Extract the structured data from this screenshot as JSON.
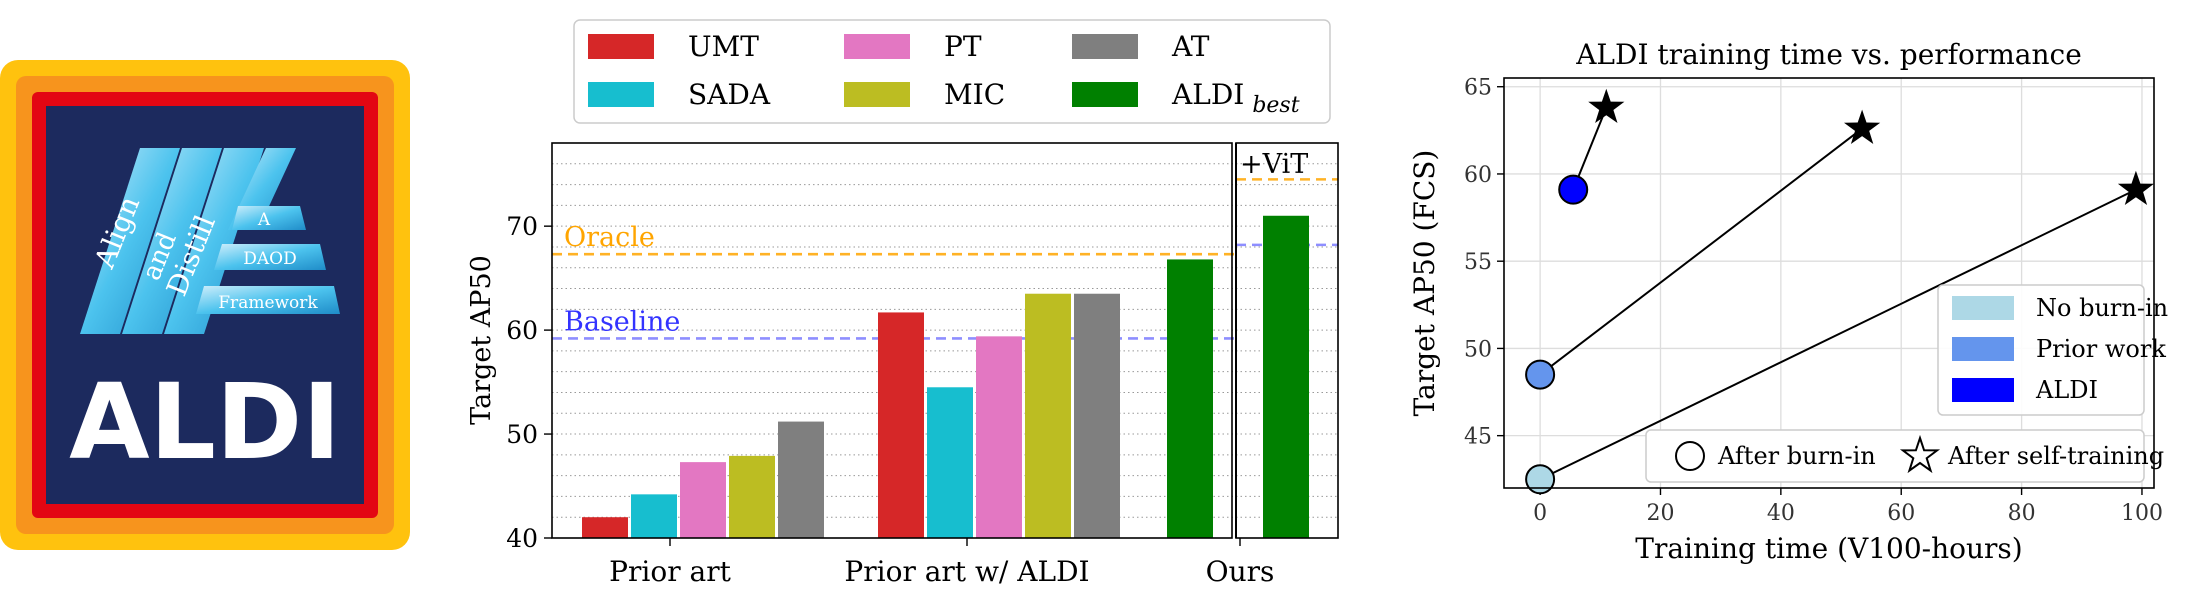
{
  "logo": {
    "word1": "Align",
    "word2": "and",
    "word3": "Distill",
    "tag1": "A",
    "tag2": "DAOD",
    "tag3": "Framework",
    "wordmark": "ALDI"
  },
  "chart_data": [
    {
      "type": "bar",
      "ylabel": "Target AP50",
      "ylim": [
        40,
        78
      ],
      "yticks": [
        40,
        50,
        60,
        70
      ],
      "grid": "minor horizontal dotted",
      "legend_position": "top",
      "groups": [
        "Prior art",
        "Prior art w/ ALDI",
        "Ours"
      ],
      "series": [
        {
          "name": "UMT",
          "color": "#d62728",
          "values": [
            42.0,
            61.7,
            null
          ]
        },
        {
          "name": "SADA",
          "color": "#17becf",
          "values": [
            44.2,
            54.5,
            null
          ]
        },
        {
          "name": "PT",
          "color": "#e377c2",
          "values": [
            47.3,
            59.4,
            null
          ]
        },
        {
          "name": "MIC",
          "color": "#bcbd22",
          "values": [
            47.9,
            63.5,
            null
          ]
        },
        {
          "name": "AT",
          "color": "#7f7f7f",
          "values": [
            51.2,
            63.5,
            null
          ]
        },
        {
          "name": "ALDI",
          "name_subscript": "best",
          "color": "#008000",
          "values": [
            null,
            null,
            66.8
          ]
        }
      ],
      "vit_section": {
        "label": "+ViT",
        "value": 71.0,
        "color": "#008000"
      },
      "reference_lines": [
        {
          "label": "Oracle",
          "value": 67.3,
          "color": "#ffa500"
        },
        {
          "label": "Baseline",
          "value": 59.2,
          "color": "#3333ff"
        }
      ],
      "vit_reference_lines": [
        {
          "value": 74.5,
          "color": "#ffa500"
        },
        {
          "value": 68.2,
          "color": "#3333ff"
        }
      ]
    },
    {
      "type": "scatter",
      "title": "ALDI training time vs. performance",
      "xlabel": "Training time (V100-hours)",
      "ylabel": "Target AP50 (FCS)",
      "xlim": [
        -6,
        102
      ],
      "ylim": [
        42,
        65.5
      ],
      "xticks": [
        0,
        20,
        40,
        60,
        80,
        100
      ],
      "yticks": [
        45,
        50,
        55,
        60,
        65
      ],
      "grid": true,
      "series": [
        {
          "name": "No burn-in",
          "color": "#add8e6",
          "burnin": {
            "x": 0,
            "y": 42.5
          },
          "selftrain": {
            "x": 99,
            "y": 59.1
          }
        },
        {
          "name": "Prior work",
          "color": "#6495ed",
          "burnin": {
            "x": 0,
            "y": 48.5
          },
          "selftrain": {
            "x": 53.5,
            "y": 62.6
          }
        },
        {
          "name": "ALDI",
          "color": "#0000ff",
          "burnin": {
            "x": 5.5,
            "y": 59.1
          },
          "selftrain": {
            "x": 11,
            "y": 63.8
          }
        }
      ],
      "legend_color": {
        "position": "lower right",
        "entries": [
          "No burn-in",
          "Prior work",
          "ALDI"
        ]
      },
      "legend_marker": {
        "position": "bottom",
        "entries": [
          "After burn-in",
          "After self-training"
        ]
      }
    }
  ]
}
